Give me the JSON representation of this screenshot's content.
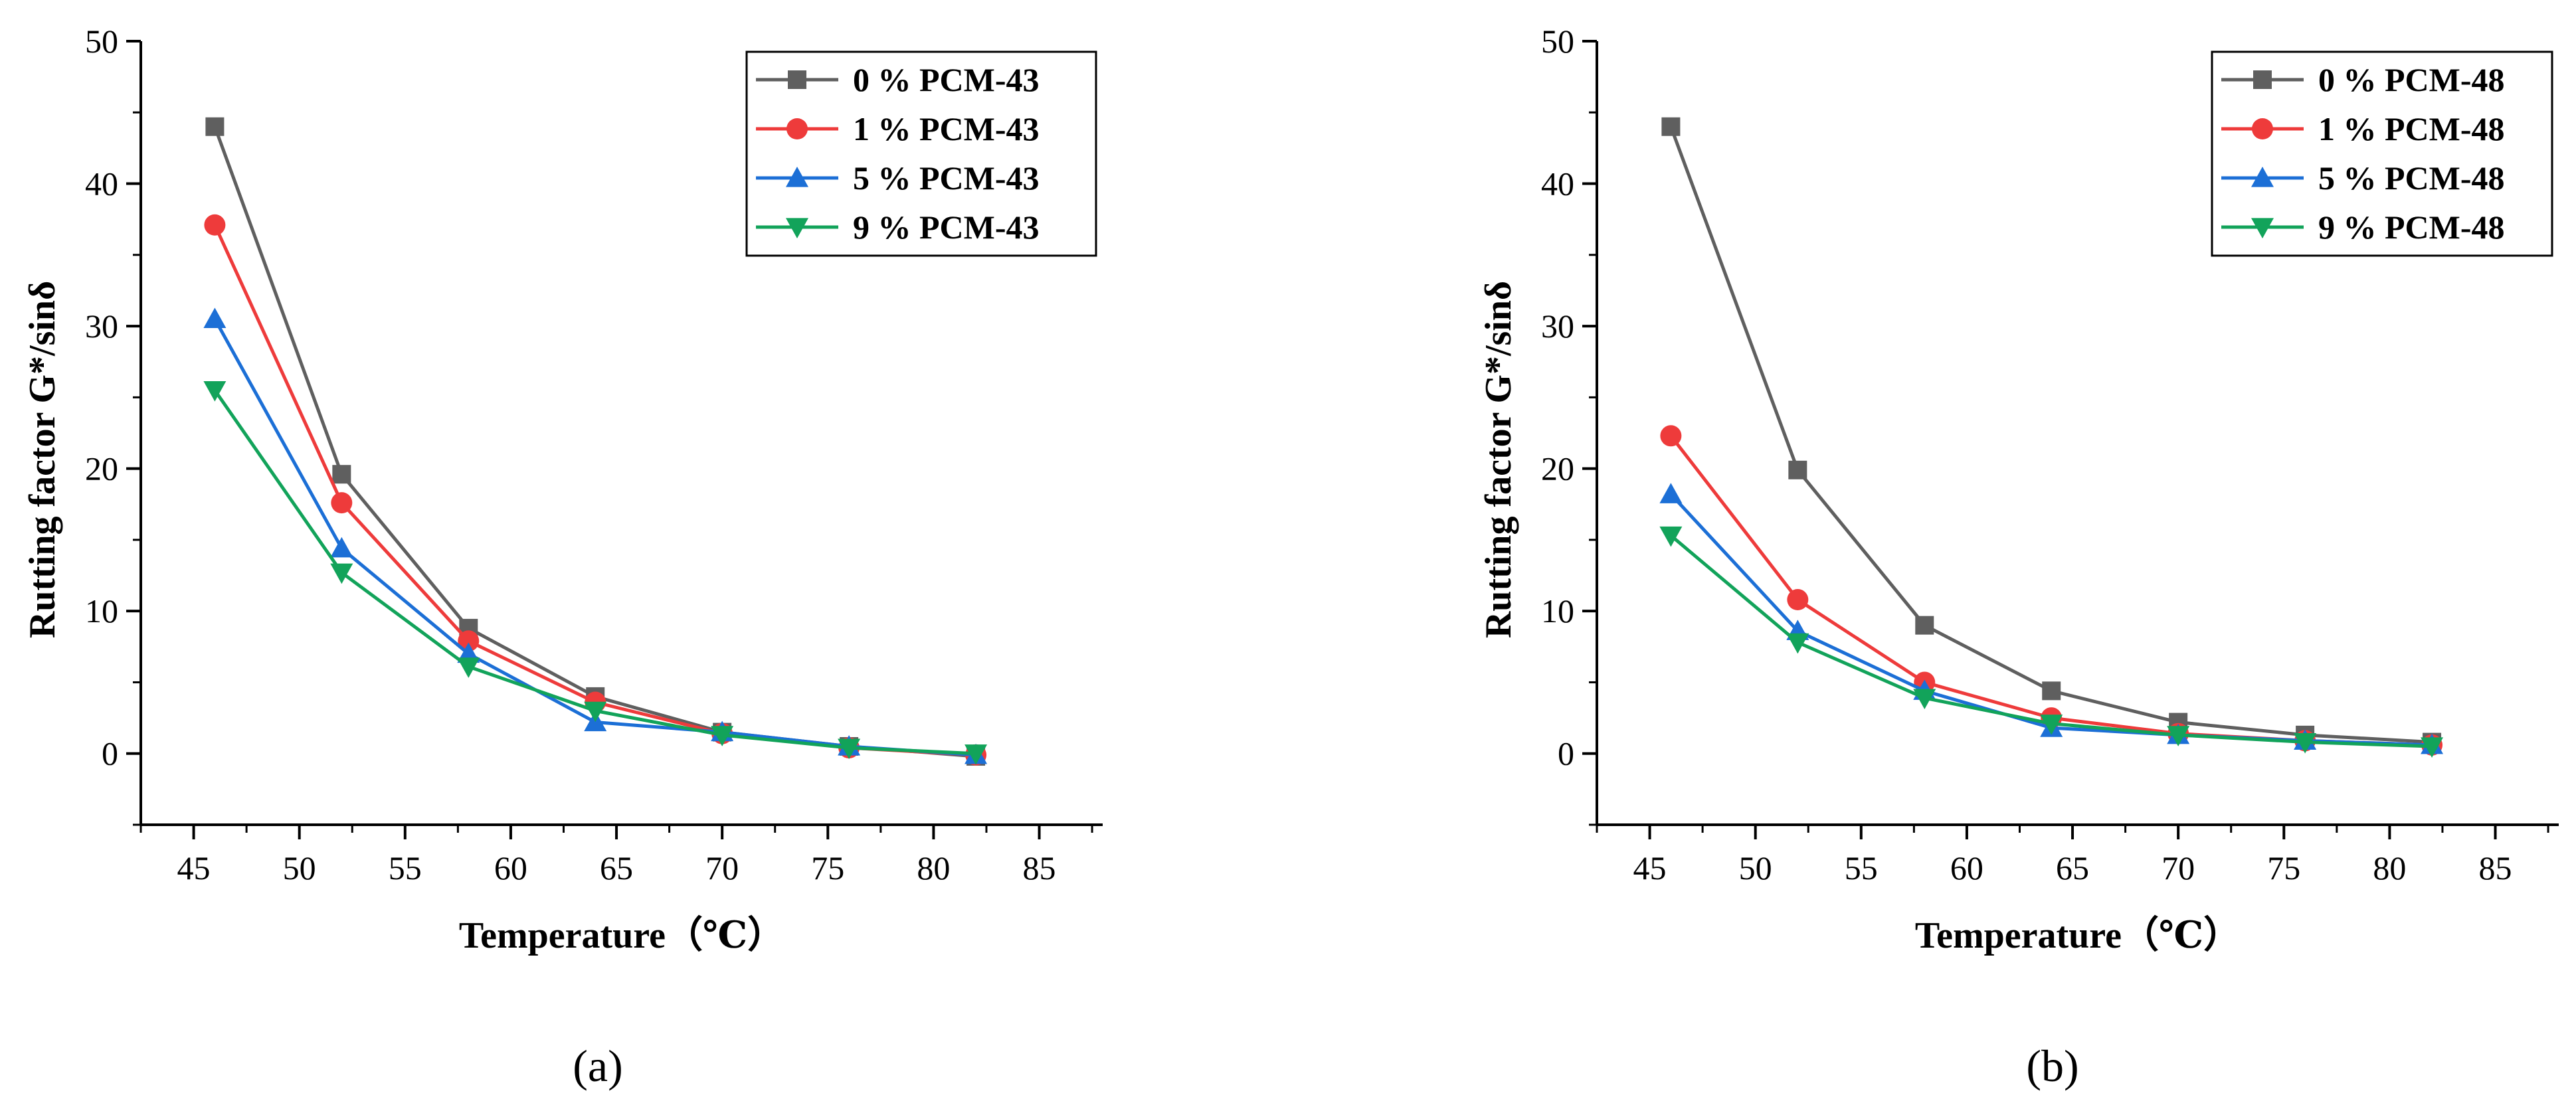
{
  "figure": {
    "panel_labels": [
      "(a)",
      "(b)"
    ]
  },
  "chart_data": [
    {
      "type": "line",
      "panel": "(a)",
      "title": "",
      "xlabel": "Temperature（℃）",
      "ylabel": "Rutting factor G*/sinδ",
      "xlim": [
        42.5,
        88
      ],
      "ylim": [
        -5,
        50
      ],
      "xticks": [
        45,
        50,
        55,
        60,
        65,
        70,
        75,
        80,
        85
      ],
      "yticks": [
        0,
        10,
        20,
        30,
        40,
        50
      ],
      "legend_position": "top-right",
      "x": [
        46,
        52,
        58,
        64,
        70,
        76,
        82
      ],
      "series": [
        {
          "name": "0 % PCM-43",
          "color": "#5f5f5f",
          "marker": "square",
          "values": [
            44.0,
            19.6,
            8.8,
            4.0,
            1.5,
            0.5,
            -0.2
          ]
        },
        {
          "name": "1 % PCM-43",
          "color": "#ee3b3b",
          "marker": "circle",
          "values": [
            37.1,
            17.6,
            7.9,
            3.6,
            1.4,
            0.4,
            -0.1
          ]
        },
        {
          "name": "5 % PCM-43",
          "color": "#1c6fd6",
          "marker": "triangle-up",
          "values": [
            30.5,
            14.4,
            7.0,
            2.2,
            1.5,
            0.5,
            -0.1
          ]
        },
        {
          "name": "9 % PCM-43",
          "color": "#12a35a",
          "marker": "triangle-down",
          "values": [
            25.5,
            12.7,
            6.1,
            3.0,
            1.3,
            0.4,
            0.0
          ]
        }
      ]
    },
    {
      "type": "line",
      "panel": "(b)",
      "title": "",
      "xlabel": "Temperature（℃）",
      "ylabel": "Rutting factor G*/sinδ",
      "xlim": [
        42.5,
        88
      ],
      "ylim": [
        -5,
        50
      ],
      "xticks": [
        45,
        50,
        55,
        60,
        65,
        70,
        75,
        80,
        85
      ],
      "yticks": [
        0,
        10,
        20,
        30,
        40,
        50
      ],
      "legend_position": "top-right",
      "x": [
        46,
        52,
        58,
        64,
        70,
        76,
        82
      ],
      "series": [
        {
          "name": "0 % PCM-48",
          "color": "#5f5f5f",
          "marker": "square",
          "values": [
            44.0,
            19.9,
            9.0,
            4.4,
            2.2,
            1.3,
            0.8
          ]
        },
        {
          "name": "1 % PCM-48",
          "color": "#ee3b3b",
          "marker": "circle",
          "values": [
            22.3,
            10.8,
            5.0,
            2.5,
            1.4,
            0.9,
            0.6
          ]
        },
        {
          "name": "5 % PCM-48",
          "color": "#1c6fd6",
          "marker": "triangle-up",
          "values": [
            18.2,
            8.6,
            4.4,
            1.8,
            1.3,
            0.9,
            0.6
          ]
        },
        {
          "name": "9 % PCM-48",
          "color": "#12a35a",
          "marker": "triangle-down",
          "values": [
            15.3,
            7.8,
            3.9,
            2.1,
            1.3,
            0.8,
            0.5
          ]
        }
      ]
    }
  ]
}
